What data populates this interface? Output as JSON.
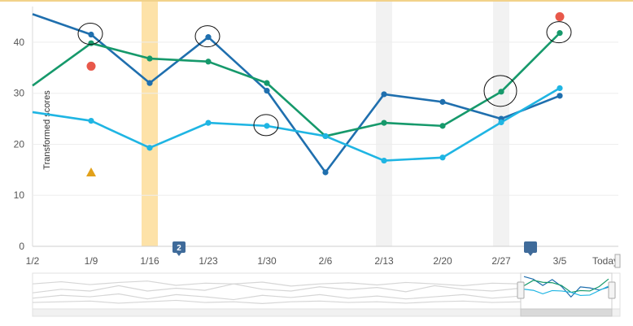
{
  "chart_data": {
    "type": "line",
    "ylabel": "Transformed scores",
    "ylim": [
      0,
      47
    ],
    "yticks": [
      0,
      10,
      20,
      30,
      40
    ],
    "x": [
      "1/2",
      "1/9",
      "1/16",
      "1/23",
      "1/30",
      "2/6",
      "2/13",
      "2/20",
      "2/27",
      "3/5",
      "Today"
    ],
    "series": [
      {
        "color": "#1f6fae",
        "values": [
          45.5,
          41.5,
          32,
          41,
          30.5,
          14.5,
          29.8,
          28.3,
          25,
          29.5,
          null
        ]
      },
      {
        "color": "#16996b",
        "values": [
          31.5,
          39.8,
          36.8,
          36.2,
          32,
          21.6,
          24.2,
          23.6,
          30.3,
          41.8,
          null
        ]
      },
      {
        "color": "#1fb5e3",
        "values": [
          26.3,
          24.6,
          19.3,
          24.2,
          23.6,
          21.6,
          16.8,
          17.4,
          24.3,
          31,
          null
        ]
      }
    ],
    "highlight_bands": [
      {
        "x": "1/16",
        "color": "#fde2a8"
      },
      {
        "x": "2/13",
        "color": "#f2f2f2"
      },
      {
        "x": "2/27",
        "color": "#f2f2f2"
      }
    ],
    "highlight_circles": [
      {
        "series": 0,
        "x": "1/9"
      },
      {
        "series": 0,
        "x": "1/23"
      },
      {
        "series": 2,
        "x": "1/30"
      },
      {
        "series": 1,
        "x": "2/27"
      },
      {
        "series": 1,
        "x": "3/5"
      }
    ],
    "markers": [
      {
        "shape": "circle",
        "color": "#e8584a",
        "x": "1/9",
        "y": 35.3
      },
      {
        "shape": "triangle",
        "color": "#e2a11a",
        "x": "1/9",
        "y": 14.5
      },
      {
        "shape": "circle",
        "color": "#e8584a",
        "x": "3/5",
        "y": 45
      }
    ],
    "flags": [
      {
        "x": "1/23",
        "label": "2",
        "color": "#3f6b9a"
      },
      {
        "x": "3/5",
        "label": "",
        "color": "#3f6b9a"
      }
    ],
    "grid": true
  }
}
